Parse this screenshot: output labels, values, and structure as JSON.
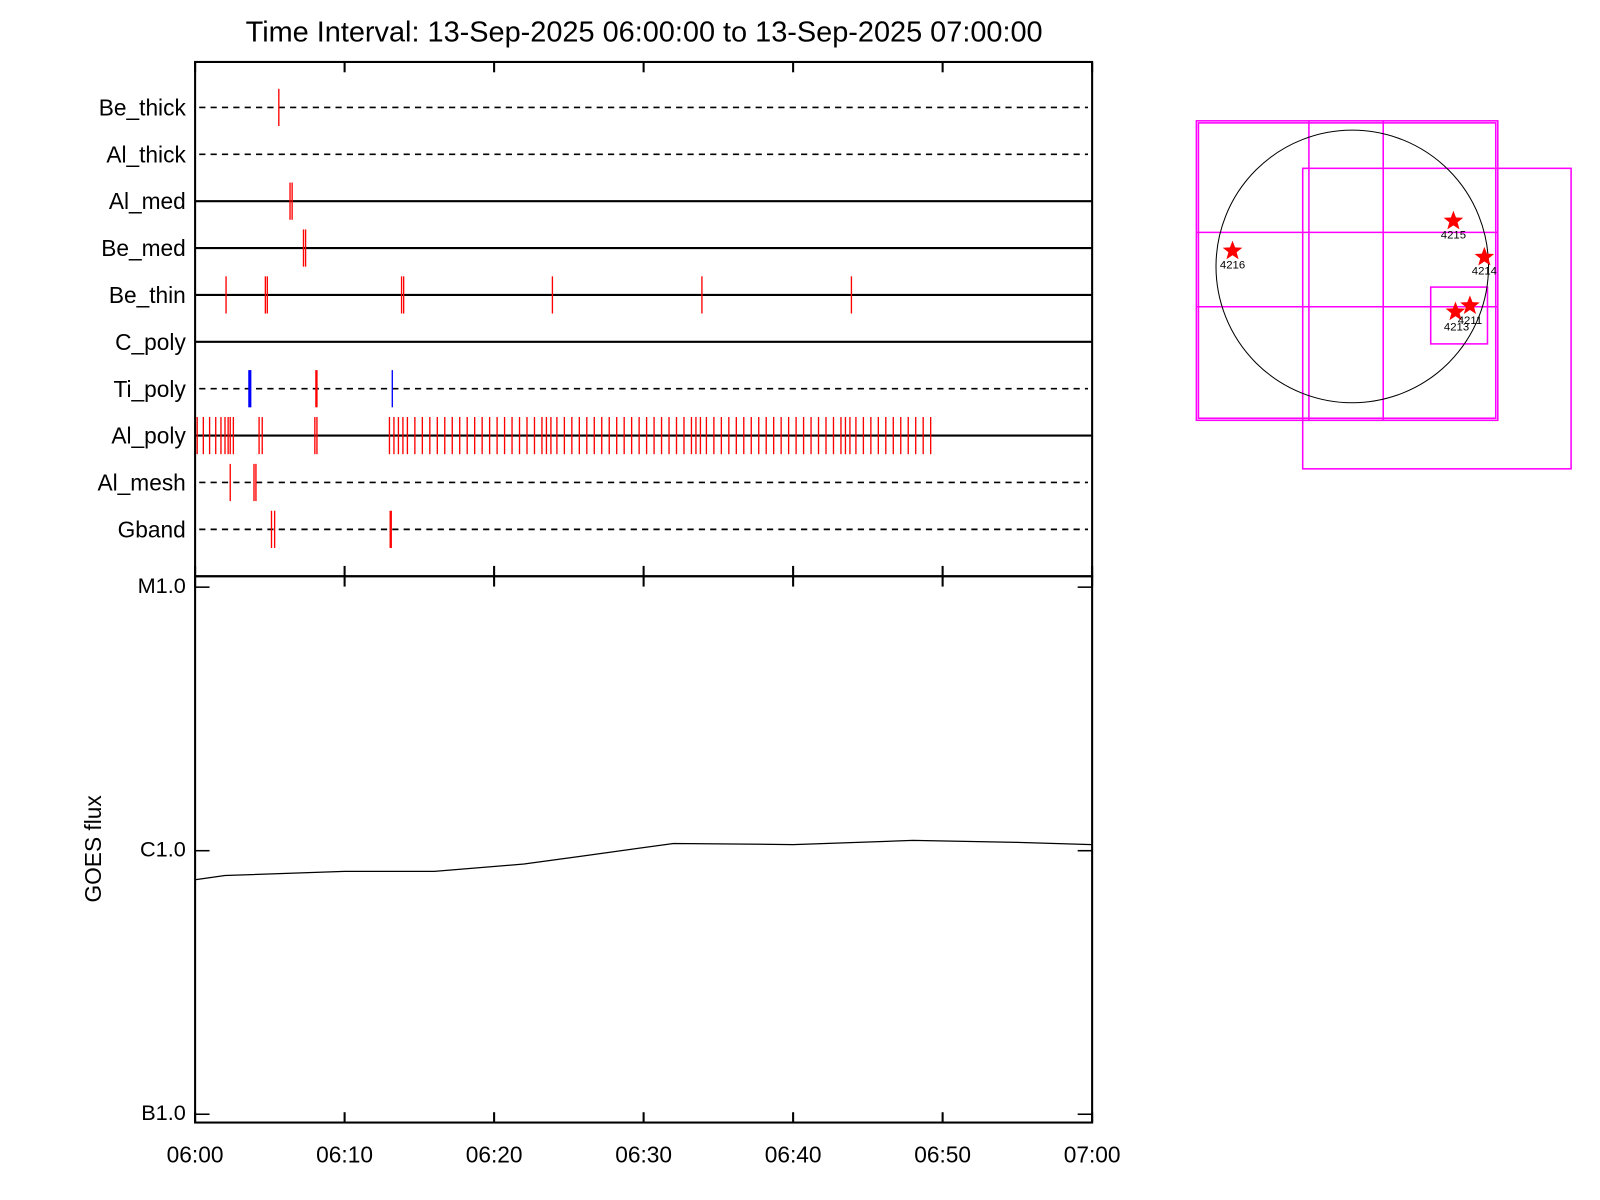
{
  "chart_data": [
    {
      "type": "timeline",
      "title": "Time Interval: 13-Sep-2025 06:00:00 to 13-Sep-2025 07:00:00",
      "xlim": [
        0,
        60
      ],
      "xticks": [
        0,
        10,
        20,
        30,
        40,
        50,
        60
      ],
      "rows": [
        {
          "label": "Be_thick",
          "line": "dashed",
          "groups": [
            {
              "color": "#ff0000",
              "times": [
                5.6
              ]
            }
          ]
        },
        {
          "label": "Al_thick",
          "line": "dashed",
          "groups": []
        },
        {
          "label": "Al_med",
          "line": "solid",
          "groups": [
            {
              "color": "#ff0000",
              "times": [
                6.35,
                6.49
              ]
            }
          ]
        },
        {
          "label": "Be_med",
          "line": "solid",
          "groups": [
            {
              "color": "#ff0000",
              "times": [
                7.25,
                7.39
              ]
            }
          ]
        },
        {
          "label": "Be_thin",
          "line": "solid",
          "groups": [
            {
              "color": "#ff0000",
              "times": [
                2.07,
                4.7,
                4.83,
                13.81,
                13.95,
                23.9,
                33.9,
                43.9
              ]
            }
          ]
        },
        {
          "label": "C_poly",
          "line": "solid",
          "groups": []
        },
        {
          "label": "Ti_poly",
          "line": "dashed",
          "groups": [
            {
              "color": "#ff0000",
              "times": [
                8.08,
                8.15
              ]
            },
            {
              "color": "#0000ff",
              "times": [
                3.6,
                3.66,
                3.72,
                13.19
              ]
            }
          ]
        },
        {
          "label": "Al_poly",
          "line": "solid",
          "groups": [
            {
              "color": "#ff0000",
              "times": [
                0.14,
                0.55,
                0.97,
                1.38,
                1.73,
                2.0,
                2.21,
                2.35,
                2.56,
                4.28,
                4.49,
                8.01,
                8.15,
                13.0,
                13.3,
                13.6,
                13.9,
                14.2,
                14.7,
                15.2,
                15.7,
                16.2,
                16.7,
                17.2,
                17.7,
                18.2,
                18.7,
                19.2,
                19.7,
                20.2,
                20.7,
                21.2,
                21.7,
                22.2,
                22.7,
                23.2,
                23.5,
                23.8,
                24.2,
                24.7,
                25.2,
                25.7,
                26.2,
                26.7,
                27.2,
                27.7,
                28.2,
                28.7,
                29.2,
                29.7,
                30.2,
                30.7,
                31.2,
                31.7,
                32.2,
                32.7,
                33.2,
                33.5,
                33.8,
                34.2,
                34.7,
                35.2,
                35.7,
                36.2,
                36.7,
                37.2,
                37.7,
                38.2,
                38.7,
                39.2,
                39.7,
                40.2,
                40.7,
                41.2,
                41.7,
                42.2,
                42.7,
                43.2,
                43.5,
                43.8,
                44.2,
                44.7,
                45.2,
                45.7,
                46.2,
                46.7,
                47.2,
                47.7,
                48.2,
                48.7,
                49.2
              ]
            }
          ]
        },
        {
          "label": "Al_mesh",
          "line": "dashed",
          "groups": [
            {
              "color": "#ff0000",
              "times": [
                2.35,
                3.94,
                4.07
              ]
            }
          ]
        },
        {
          "label": "Gband",
          "line": "dashed",
          "groups": [
            {
              "color": "#ff0000",
              "times": [
                5.11,
                5.32,
                13.05,
                13.12
              ]
            }
          ]
        }
      ]
    },
    {
      "type": "line",
      "y_label": "GOES flux",
      "log_y": true,
      "xlim": [
        0,
        60
      ],
      "xticks": [
        {
          "value": 0,
          "label": "06:00"
        },
        {
          "value": 10,
          "label": "06:10"
        },
        {
          "value": 20,
          "label": "06:20"
        },
        {
          "value": 30,
          "label": "06:30"
        },
        {
          "value": 40,
          "label": "06:40"
        },
        {
          "value": 50,
          "label": "06:50"
        },
        {
          "value": 60,
          "label": "07:00"
        }
      ],
      "ylim": [
        9.3e-08,
        1.1e-05
      ],
      "yticks": [
        {
          "value": 1e-07,
          "label": "B1.0"
        },
        {
          "value": 1e-06,
          "label": "C1.0"
        },
        {
          "value": 1e-05,
          "label": "M1.0"
        }
      ],
      "series": [
        {
          "color": "#000000",
          "x": [
            0,
            2,
            10,
            16,
            22,
            26,
            32,
            40,
            48,
            55,
            60
          ],
          "values": [
            7.76e-07,
            8.05e-07,
            8.35e-07,
            8.35e-07,
            8.9e-07,
            9.56e-07,
            1.065e-06,
            1.055e-06,
            1.094e-06,
            1.075e-06,
            1.055e-06
          ]
        }
      ]
    }
  ],
  "solar_map": {
    "regions": [
      "4215",
      "4216",
      "4214",
      "4213",
      "4211"
    ]
  }
}
